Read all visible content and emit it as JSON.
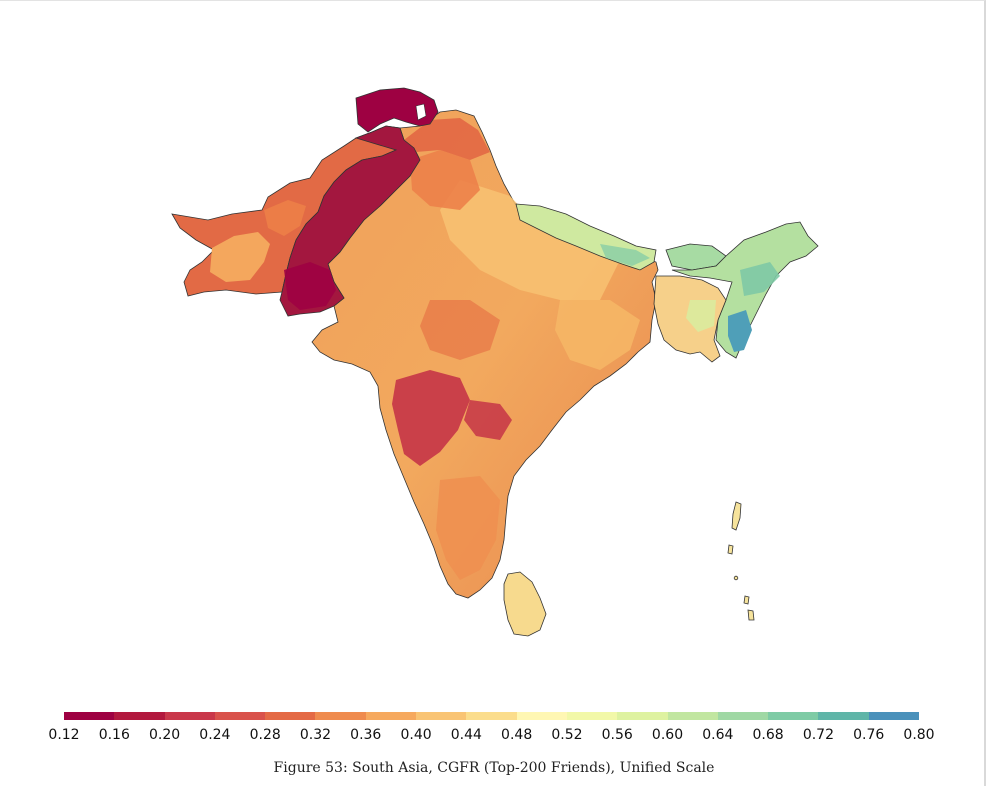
{
  "figure": {
    "caption": "Figure 53: South Asia, CGFR (Top-200 Friends), Unified Scale"
  },
  "colorbar": {
    "ticks": [
      "0.12",
      "0.16",
      "0.20",
      "0.24",
      "0.28",
      "0.32",
      "0.36",
      "0.40",
      "0.44",
      "0.48",
      "0.52",
      "0.56",
      "0.60",
      "0.64",
      "0.68",
      "0.72",
      "0.76",
      "0.80"
    ],
    "colors": [
      "#9e0142",
      "#b2183e",
      "#c9374a",
      "#d9524b",
      "#e46a45",
      "#ef8b4e",
      "#f6a95e",
      "#f9c474",
      "#fbdd8c",
      "#fff7b3",
      "#f2f8a8",
      "#def2a0",
      "#c1e6a0",
      "#9fd8a4",
      "#7ecba5",
      "#5fb5a8",
      "#4a91bb"
    ],
    "range": [
      0.12,
      0.8
    ]
  },
  "map_regions": [
    {
      "region": "Northern Pakistan",
      "color": "#9e0142"
    },
    {
      "region": "Pakistan",
      "color": "#a3173f"
    },
    {
      "region": "Afghanistan",
      "color": "#e26a45"
    },
    {
      "region": "India",
      "color": "#f3a15b"
    },
    {
      "region": "Deccan interior",
      "color": "#c73a48"
    },
    {
      "region": "Nepal",
      "color": "#cfe9a0"
    },
    {
      "region": "Bhutan",
      "color": "#a7dba3"
    },
    {
      "region": "Bangladesh",
      "color": "#f6d08a"
    },
    {
      "region": "Northeast India",
      "color": "#b4e0a0"
    },
    {
      "region": "Mizoram",
      "color": "#4f9fb8"
    },
    {
      "region": "Sri Lanka",
      "color": "#f7da8e"
    },
    {
      "region": "Andaman and Nicobar Islands",
      "color": "#f6e39c"
    }
  ]
}
